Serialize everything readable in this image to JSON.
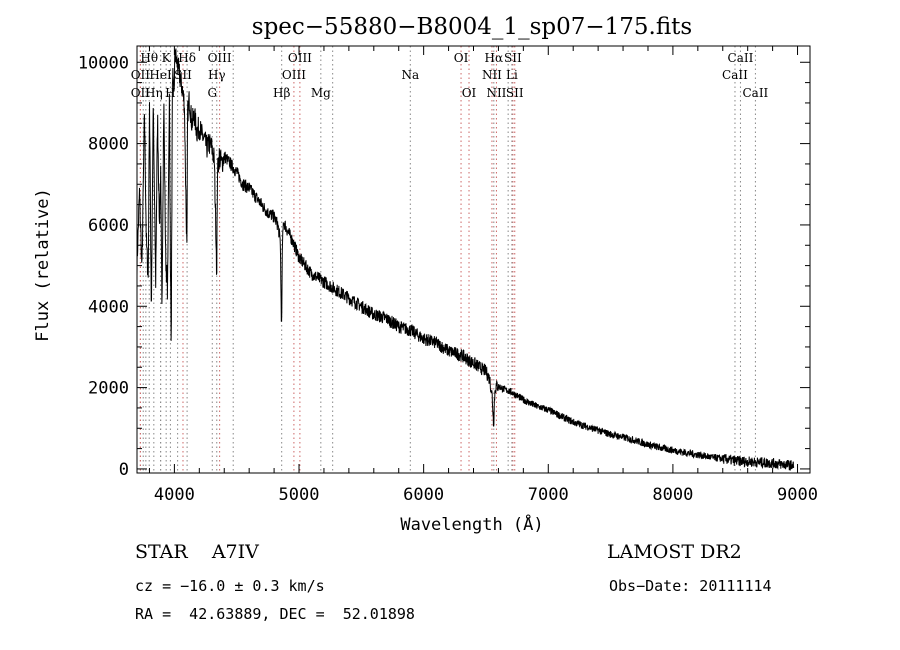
{
  "chart_data": {
    "type": "line",
    "title": "spec−55880−B8004_1_sp07−175.fits",
    "xlabel": "Wavelength (Å)",
    "ylabel": "Flux (relative)",
    "xlim": [
      3700,
      9100
    ],
    "ylim": [
      -100,
      10400
    ],
    "xticks": [
      4000,
      5000,
      6000,
      7000,
      8000,
      9000
    ],
    "yticks": [
      0,
      2000,
      4000,
      6000,
      8000,
      10000
    ],
    "grid": false,
    "series": [
      {
        "x": [
          3700,
          3720,
          3740,
          3760,
          3775,
          3790,
          3800,
          3815,
          3830,
          3850,
          3865,
          3880,
          3890,
          3900,
          3915,
          3930,
          3945,
          3960,
          3968,
          3975,
          3985,
          3995,
          4005,
          4020,
          4040,
          4060,
          4080,
          4095,
          4101,
          4105,
          4120,
          4140,
          4160,
          4180,
          4200,
          4220,
          4240,
          4260,
          4280,
          4300,
          4320,
          4335,
          4340,
          4345,
          4360,
          4380,
          4400,
          4450,
          4500,
          4550,
          4600,
          4650,
          4700,
          4750,
          4800,
          4830,
          4850,
          4857,
          4861,
          4866,
          4875,
          4900,
          4950,
          5000,
          5050,
          5100,
          5150,
          5200,
          5300,
          5400,
          5500,
          5600,
          5700,
          5800,
          5900,
          6000,
          6100,
          6200,
          6300,
          6400,
          6450,
          6500,
          6530,
          6550,
          6560,
          6563,
          6568,
          6575,
          6590,
          6620,
          6650,
          6700,
          6800,
          6900,
          7000,
          7100,
          7200,
          7300,
          7400,
          7500,
          7600,
          7700,
          7800,
          7900,
          8000,
          8100,
          8200,
          8300,
          8400,
          8500,
          8600,
          8700,
          8800,
          8900,
          8970
        ],
        "y": [
          5000,
          6800,
          4900,
          8800,
          5600,
          4700,
          9100,
          3900,
          8900,
          4600,
          8700,
          6000,
          7200,
          3900,
          9100,
          5200,
          4400,
          9400,
          4800,
          3200,
          9900,
          9000,
          10200,
          10000,
          9700,
          9400,
          9000,
          6200,
          5200,
          8700,
          9100,
          8500,
          8700,
          8300,
          8400,
          8200,
          8100,
          7900,
          8000,
          7900,
          7600,
          5600,
          4700,
          7300,
          7700,
          7500,
          7700,
          7500,
          7300,
          7000,
          6900,
          6700,
          6500,
          6300,
          6200,
          6000,
          5600,
          3900,
          3400,
          5400,
          6100,
          5900,
          5600,
          5200,
          5000,
          4800,
          4700,
          4600,
          4400,
          4200,
          4000,
          3800,
          3700,
          3500,
          3400,
          3200,
          3100,
          2900,
          2800,
          2600,
          2500,
          2400,
          2200,
          1800,
          1200,
          1150,
          1700,
          2000,
          2050,
          2000,
          1950,
          1900,
          1700,
          1550,
          1450,
          1300,
          1150,
          1050,
          950,
          850,
          780,
          700,
          600,
          520,
          460,
          400,
          350,
          290,
          250,
          200,
          180,
          160,
          140,
          110,
          80
        ]
      }
    ],
    "annotations": {
      "line_markers": [
        {
          "label": "Hθ",
          "x": 3798,
          "row": 1,
          "color": "#888888"
        },
        {
          "label": "K",
          "x": 3934,
          "row": 1,
          "color": "#888888"
        },
        {
          "label": "Hδ",
          "x": 4102,
          "row": 1,
          "color": "#888888"
        },
        {
          "label": "OIII",
          "x": 4363,
          "row": 1,
          "color": "#cc6666"
        },
        {
          "label": "OIII",
          "x": 5007,
          "row": 1,
          "color": "#cc6666"
        },
        {
          "label": "OI",
          "x": 6300,
          "row": 1,
          "color": "#cc6666"
        },
        {
          "label": "Hα",
          "x": 6563,
          "row": 1,
          "color": "#888888"
        },
        {
          "label": "SII",
          "x": 6716,
          "row": 1,
          "color": "#cc6666"
        },
        {
          "label": "CaII",
          "x": 8542,
          "row": 1,
          "color": "#888888"
        },
        {
          "label": "OII",
          "x": 3727,
          "row": 2,
          "color": "#cc6666"
        },
        {
          "label": "HeI",
          "x": 3889,
          "row": 2,
          "color": "#888888"
        },
        {
          "label": "SII",
          "x": 4069,
          "row": 2,
          "color": "#cc6666"
        },
        {
          "label": "Hγ",
          "x": 4340,
          "row": 2,
          "color": "#888888"
        },
        {
          "label": "OIII",
          "x": 4959,
          "row": 2,
          "color": "#cc6666"
        },
        {
          "label": "Na",
          "x": 5893,
          "row": 2,
          "color": "#888888"
        },
        {
          "label": "NII",
          "x": 6548,
          "row": 2,
          "color": "#cc6666"
        },
        {
          "label": "Li",
          "x": 6708,
          "row": 2,
          "color": "#888888"
        },
        {
          "label": "CaII",
          "x": 8498,
          "row": 2,
          "color": "#888888"
        },
        {
          "label": "OII",
          "x": 3727,
          "row": 3,
          "color": "#cc6666"
        },
        {
          "label": "Hη",
          "x": 3835,
          "row": 3,
          "color": "#888888"
        },
        {
          "label": "H",
          "x": 3968,
          "row": 3,
          "color": "#888888"
        },
        {
          "label": "G",
          "x": 4304,
          "row": 3,
          "color": "#888888"
        },
        {
          "label": "Hβ",
          "x": 4861,
          "row": 3,
          "color": "#888888"
        },
        {
          "label": "Mg",
          "x": 5175,
          "row": 3,
          "color": "#888888"
        },
        {
          "label": "OI",
          "x": 6364,
          "row": 3,
          "color": "#cc6666"
        },
        {
          "label": "NII",
          "x": 6584,
          "row": 3,
          "color": "#cc6666"
        },
        {
          "label": "SII",
          "x": 6731,
          "row": 3,
          "color": "#cc6666"
        },
        {
          "label": "CaII",
          "x": 8662,
          "row": 3,
          "color": "#888888"
        }
      ],
      "extra_markers": [
        3750,
        3771,
        3890,
        4026,
        4472,
        5270,
        6678
      ]
    }
  },
  "footer": {
    "object": "STAR    A7IV",
    "survey": "LAMOST DR2",
    "cz": "cz = −16.0 ± 0.3 km/s",
    "obsdate": "Obs−Date: 20111114",
    "radec": "RA =  42.63889, DEC =  52.01898"
  }
}
